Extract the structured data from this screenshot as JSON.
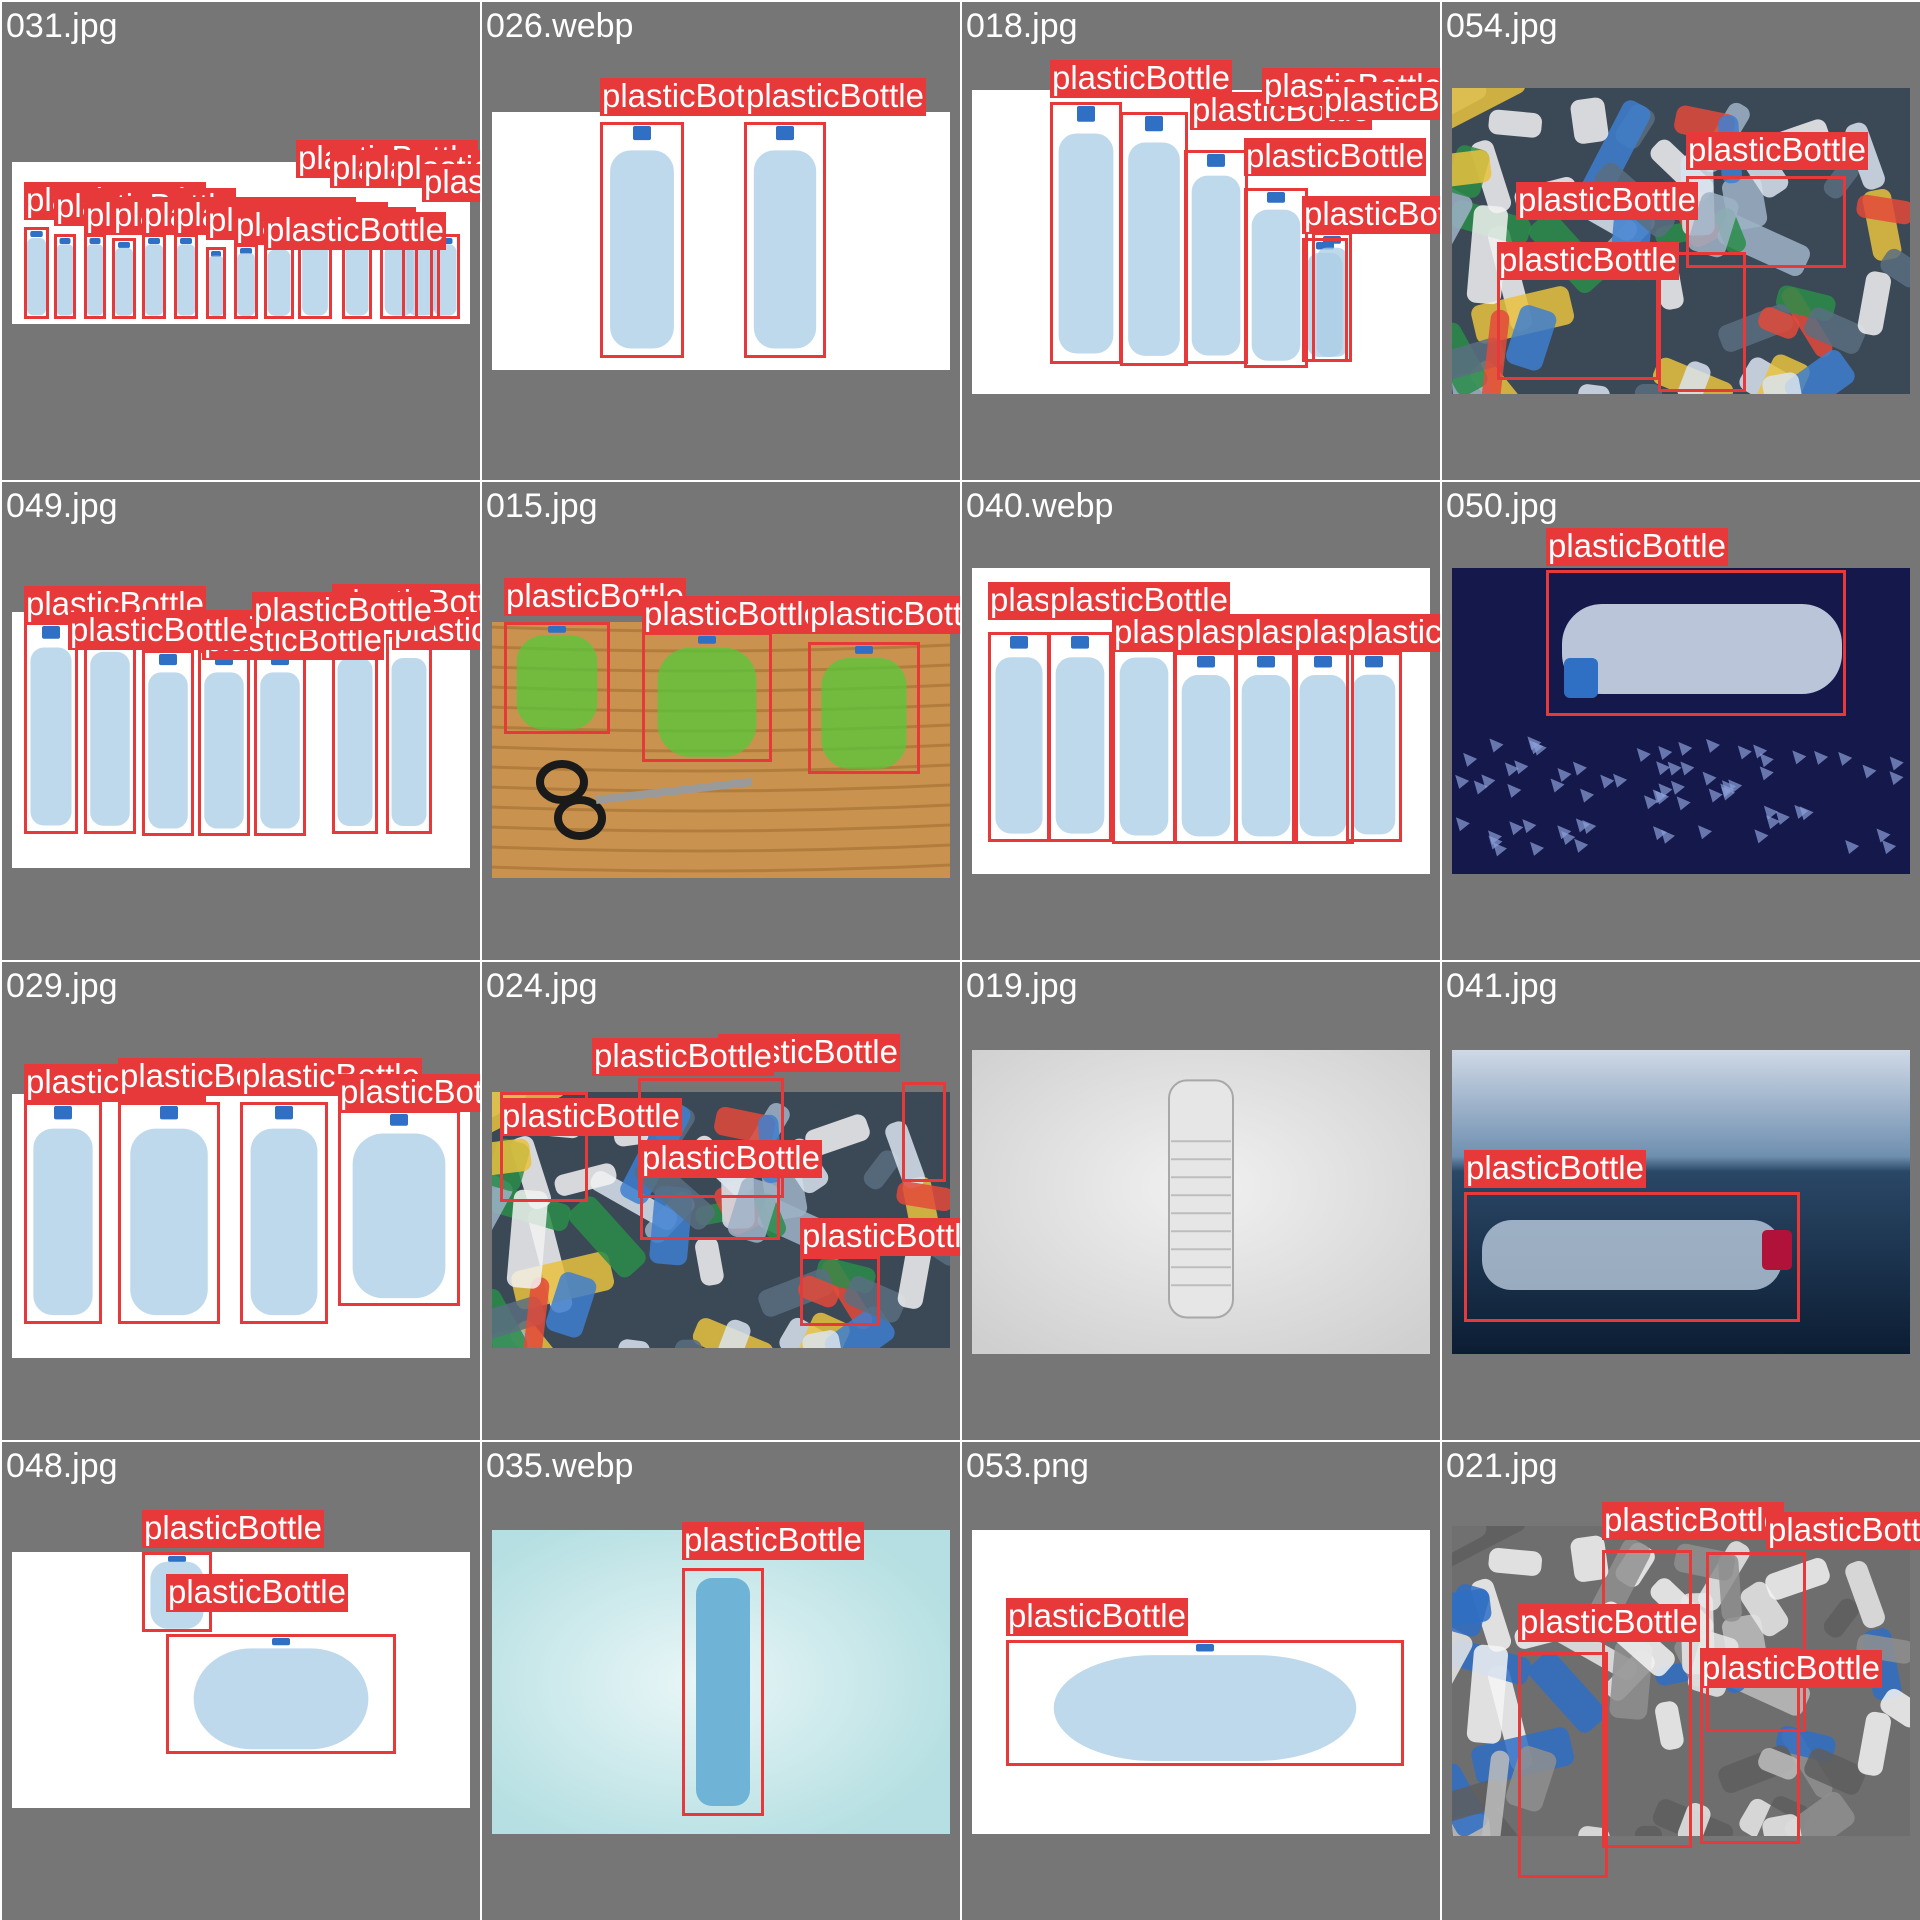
{
  "colors": {
    "tile_background": "#767676",
    "box_color": "#e8393a",
    "label_text": "#ffffff"
  },
  "tiles": [
    {
      "filename": "031.jpg",
      "scene": "white",
      "labels": [
        "plasticBottle",
        "plasticBottle",
        "plasticBottle",
        "plasticBottle",
        "plasticBottle",
        "plasticBottle",
        "plasticBottle",
        "plasticBottle",
        "plasticBottle",
        "plasticBottle",
        "plasticBottle",
        "plasticBottle",
        "plasticBottle",
        "plasticBottle"
      ]
    },
    {
      "filename": "026.webp",
      "scene": "white",
      "labels": [
        "plasticBottle",
        "plasticBottle"
      ]
    },
    {
      "filename": "018.jpg",
      "scene": "white",
      "labels": [
        "plasticBottle",
        "plasticBottle",
        "plasticBottle",
        "plasticBottle",
        "plasticBottle",
        "plasticBottle"
      ]
    },
    {
      "filename": "054.jpg",
      "scene": "pile",
      "labels": [
        "plasticBottle",
        "plasticBottle",
        "plasticBottle"
      ]
    },
    {
      "filename": "049.jpg",
      "scene": "white",
      "labels": [
        "plasticBottle",
        "plasticBottle",
        "plasticBottle",
        "plasticBottle",
        "plasticBottle",
        "plasticBottle",
        "plasticBottle"
      ]
    },
    {
      "filename": "015.jpg",
      "scene": "wood",
      "labels": [
        "plasticBottle",
        "plasticBottle",
        "plasticBottle"
      ]
    },
    {
      "filename": "040.webp",
      "scene": "white",
      "labels": [
        "plasticBottle",
        "plasticBottle",
        "plasticBottle",
        "plasticBottle",
        "plasticBottle",
        "plasticBottle",
        "plasticBottle"
      ]
    },
    {
      "filename": "050.jpg",
      "scene": "navy",
      "labels": [
        "plasticBottle"
      ]
    },
    {
      "filename": "029.jpg",
      "scene": "white",
      "labels": [
        "plasticBottle",
        "plasticBottle",
        "plasticBottle",
        "plasticBottle"
      ]
    },
    {
      "filename": "024.jpg",
      "scene": "pile",
      "labels": [
        "plasticBottle",
        "plasticBottle",
        "plasticBottle",
        "plasticBottle",
        "plasticBottle"
      ]
    },
    {
      "filename": "019.jpg",
      "scene": "grey",
      "labels": []
    },
    {
      "filename": "041.jpg",
      "scene": "sea",
      "labels": [
        "plasticBottle"
      ]
    },
    {
      "filename": "048.jpg",
      "scene": "white",
      "labels": [
        "plasticBottle",
        "plasticBottle"
      ]
    },
    {
      "filename": "035.webp",
      "scene": "teal",
      "labels": [
        "plasticBottle"
      ]
    },
    {
      "filename": "053.png",
      "scene": "white",
      "labels": [
        "plasticBottle"
      ]
    },
    {
      "filename": "021.jpg",
      "scene": "pile-grey",
      "labels": [
        "plasticBottle",
        "plasticBottle",
        "plasticBottle",
        "plasticBottle"
      ]
    }
  ]
}
